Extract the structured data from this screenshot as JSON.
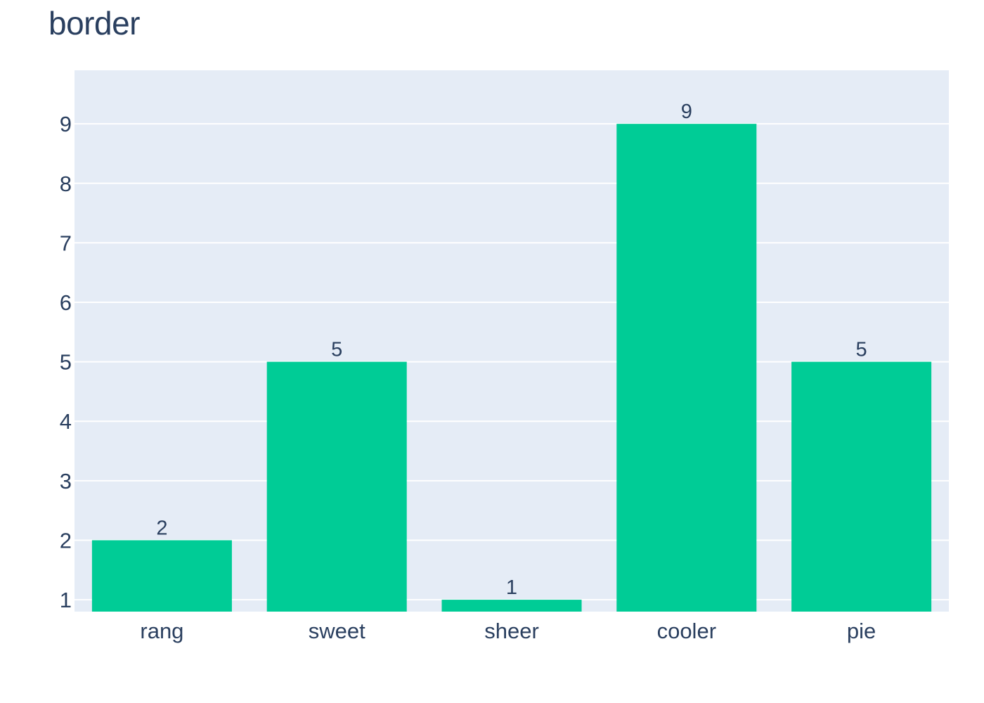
{
  "chart_data": {
    "type": "bar",
    "title": "border",
    "categories": [
      "rang",
      "sweet",
      "sheer",
      "cooler",
      "pie"
    ],
    "values": [
      2,
      5,
      1,
      9,
      5
    ],
    "data_labels": [
      "2",
      "5",
      "1",
      "9",
      "5"
    ],
    "xlabel": "",
    "ylabel": "",
    "ylim": [
      0.8,
      9.9
    ],
    "yticks": [
      1,
      2,
      3,
      4,
      5,
      6,
      7,
      8,
      9
    ],
    "grid": true,
    "legend": "none"
  },
  "colors": {
    "bar": "#00cc96",
    "plot_background": "#e5ecf6",
    "grid": "#ffffff",
    "text": "#2a3f5f"
  }
}
